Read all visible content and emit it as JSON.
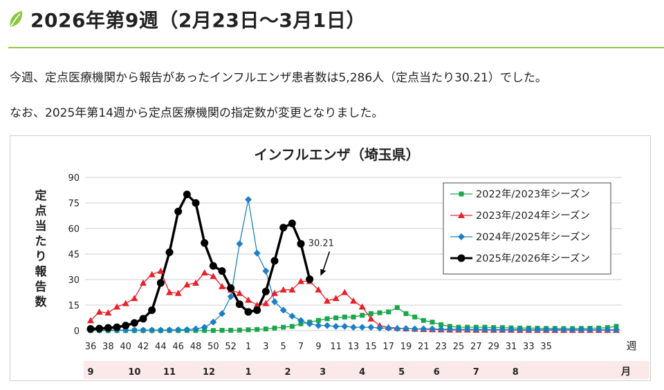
{
  "heading": {
    "title": "2026年第9週（2月23日～3月1日）",
    "icon": "leaf-icon"
  },
  "paragraphs": {
    "p1": "今週、定点医療機関から報告があったインフルエンザ患者数は5,286人（定点当たり30.21）でした。",
    "p2": "なお、2025年第14週から定点医療機関の指定数が変更となりました。"
  },
  "colors": {
    "accent_rule": "#8cc63f",
    "leaf": "#8cc63f",
    "month_band": "#fbe9ea"
  },
  "chart_data": {
    "type": "line",
    "title": "インフルエンザ（埼玉県）",
    "ylabel": "定点当たり報告数",
    "ylim": [
      0,
      90
    ],
    "yticks": [
      "0",
      "15",
      "30",
      "45",
      "60",
      "75",
      "90"
    ],
    "x_tick_labels": [
      "36",
      "38",
      "40",
      "42",
      "44",
      "46",
      "48",
      "50",
      "52",
      "1",
      "3",
      "5",
      "7",
      "9",
      "11",
      "13",
      "15",
      "17",
      "19",
      "21",
      "23",
      "25",
      "27",
      "29",
      "31",
      "33",
      "35"
    ],
    "x_unit_label": "週",
    "month_labels": [
      {
        "label": "9",
        "at": 0
      },
      {
        "label": "10",
        "at": 5
      },
      {
        "label": "11",
        "at": 9
      },
      {
        "label": "12",
        "at": 13.5
      },
      {
        "label": "1",
        "at": 18
      },
      {
        "label": "2",
        "at": 22.5
      },
      {
        "label": "3",
        "at": 26.5
      },
      {
        "label": "4",
        "at": 31
      },
      {
        "label": "5",
        "at": 35.5
      },
      {
        "label": "6",
        "at": 39.5
      },
      {
        "label": "7",
        "at": 44
      },
      {
        "label": "8",
        "at": 48.5
      }
    ],
    "month_unit_label": "月",
    "annotation": {
      "text": "30.21",
      "week_index": 26,
      "value": 30.21
    },
    "legend_position": "top-right",
    "series": [
      {
        "name": "2022年/2023年シーズン",
        "color": "#1aa64a",
        "marker": "square",
        "values": [
          0.1,
          0.1,
          0.1,
          0.1,
          0.1,
          0.1,
          0.1,
          0.1,
          0.1,
          0.1,
          0.1,
          0.1,
          0.1,
          0.1,
          0.1,
          0.2,
          0.2,
          0.3,
          0.5,
          0.7,
          1,
          1.5,
          2,
          2.5,
          4,
          5,
          6,
          7,
          7.5,
          8,
          8,
          9,
          10,
          10.5,
          11,
          13.5,
          10,
          8,
          6,
          5,
          3.5,
          2.5,
          2,
          2,
          2,
          2,
          1.8,
          1.8,
          1.6,
          1.5,
          1.5,
          1.4,
          1.3,
          1.3,
          1.2,
          1.2,
          1.3,
          1.4,
          1.5,
          1.8,
          2.5
        ]
      },
      {
        "name": "2023年/2024年シーズン",
        "color": "#e8202a",
        "marker": "triangle",
        "values": [
          6,
          11,
          10.5,
          14,
          16,
          19,
          28,
          33,
          35,
          22.5,
          22,
          27,
          28,
          34,
          32,
          26,
          24,
          22,
          18,
          15,
          16,
          22,
          24,
          24,
          29,
          29,
          24,
          17.5,
          19,
          22.5,
          17.5,
          14,
          7,
          3,
          2,
          1.5,
          1.2,
          1,
          0.8,
          0.7,
          0.6,
          0.5,
          0.5,
          0.5,
          0.4,
          0.4,
          0.4,
          0.4,
          0.4,
          0.3,
          0.3,
          0.3,
          0.3,
          0.3,
          0.3,
          0.3,
          0.3,
          0.3,
          0.3,
          0.3,
          0.3
        ]
      },
      {
        "name": "2024年/2025年シーズン",
        "color": "#1b7fc4",
        "marker": "diamond",
        "values": [
          0.3,
          0.3,
          0.3,
          0.3,
          0.3,
          0.3,
          0.3,
          0.3,
          0.3,
          0.4,
          0.5,
          0.6,
          1,
          2,
          5,
          10,
          20,
          51,
          77,
          45.5,
          35,
          17,
          12,
          8.5,
          6,
          4,
          3,
          3,
          2.5,
          2.5,
          2,
          2,
          2,
          1.5,
          1.5,
          1.2,
          1.2,
          1,
          1,
          1,
          0.8,
          0.8,
          0.8,
          0.7,
          0.7,
          0.7,
          0.6,
          0.6,
          0.6,
          0.6,
          0.5,
          0.5,
          0.5,
          0.5,
          0.5,
          0.5,
          0.5,
          0.5,
          0.5,
          0.5,
          0.5
        ]
      },
      {
        "name": "2025年/2026年シーズン",
        "color": "#000000",
        "marker": "circle",
        "values": [
          1,
          1.2,
          1.6,
          2,
          3,
          4.5,
          7,
          12,
          28,
          46,
          70,
          80,
          75,
          51.5,
          38,
          35,
          25,
          15.5,
          11,
          12,
          23,
          41,
          60.5,
          63,
          51,
          30.21
        ]
      }
    ]
  }
}
